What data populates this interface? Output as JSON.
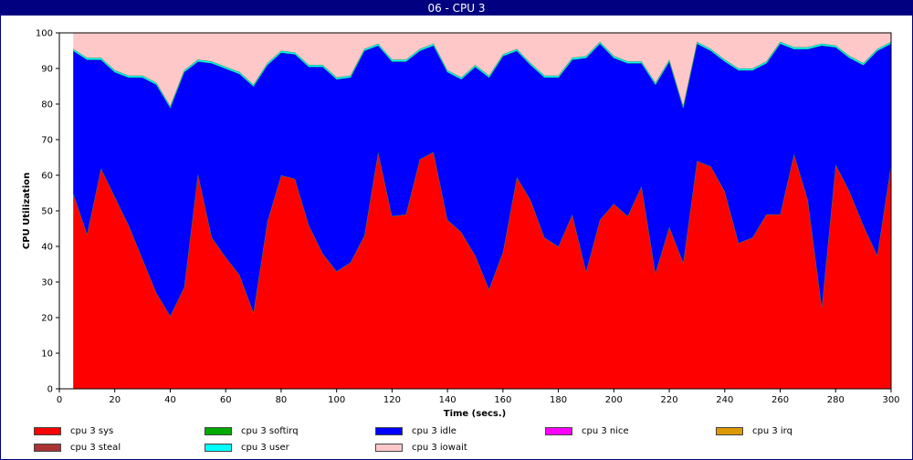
{
  "window": {
    "title": "06 - CPU 3"
  },
  "chart_data": {
    "type": "area",
    "stacked": true,
    "xlabel": "Time (secs.)",
    "ylabel": "CPU Utilization",
    "xlim": [
      0,
      300
    ],
    "ylim": [
      0,
      100
    ],
    "xticks": [
      0,
      20,
      40,
      60,
      80,
      100,
      120,
      140,
      160,
      180,
      200,
      220,
      240,
      260,
      280,
      300
    ],
    "yticks": [
      0,
      10,
      20,
      30,
      40,
      50,
      60,
      70,
      80,
      90,
      100
    ],
    "grid": false,
    "legend_position": "bottom",
    "x": [
      5,
      10,
      15,
      20,
      25,
      30,
      35,
      40,
      45,
      50,
      55,
      60,
      65,
      70,
      75,
      80,
      85,
      90,
      95,
      100,
      105,
      110,
      115,
      120,
      125,
      130,
      135,
      140,
      145,
      150,
      155,
      160,
      165,
      170,
      175,
      180,
      185,
      190,
      195,
      200,
      205,
      210,
      215,
      220,
      225,
      230,
      235,
      240,
      245,
      250,
      255,
      260,
      265,
      270,
      275,
      280,
      285,
      290,
      295,
      300
    ],
    "series": [
      {
        "name": "cpu 3 sys",
        "color": "#ff0000",
        "values": [
          55,
          43.5,
          62,
          54,
          46,
          36.5,
          27,
          20.5,
          28.5,
          60.5,
          42.5,
          37,
          32,
          21.5,
          47,
          60,
          59,
          46,
          38,
          33,
          35.5,
          43,
          66.5,
          48.5,
          49,
          64.5,
          66.5,
          47.5,
          44,
          37.5,
          28,
          38.5,
          59.5,
          53,
          42.5,
          40,
          49,
          33,
          47.5,
          52,
          48.5,
          57,
          32.5,
          45.5,
          35.5,
          64,
          62.5,
          55.5,
          41,
          42.5,
          49,
          49,
          66,
          53,
          23,
          63,
          55.5,
          46,
          37.5,
          63
        ]
      },
      {
        "name": "cpu 3 softirq",
        "color": "#00aa00",
        "values": [
          0,
          0,
          0,
          0,
          0,
          0,
          0,
          0,
          0,
          0,
          0,
          0,
          0,
          0,
          0,
          0,
          0,
          0,
          0,
          0,
          0,
          0,
          0,
          0,
          0,
          0,
          0,
          0,
          0,
          0,
          0,
          0,
          0,
          0,
          0,
          0,
          0,
          0,
          0,
          0,
          0,
          0,
          0,
          0,
          0,
          0,
          0,
          0,
          0,
          0,
          0,
          0,
          0,
          0,
          0,
          0,
          0,
          0,
          0,
          0
        ]
      },
      {
        "name": "cpu 3 idle",
        "color": "#0000ff",
        "values": [
          40,
          49,
          30.5,
          35,
          41.5,
          51,
          58.5,
          58.5,
          60.5,
          31.5,
          49,
          53,
          56.5,
          63.5,
          44,
          34.5,
          35,
          44.5,
          52.5,
          54,
          52,
          52,
          30,
          43.5,
          43,
          30.5,
          30,
          41.5,
          43,
          53,
          59.5,
          55,
          35.5,
          38,
          45,
          47.5,
          43.5,
          60,
          49.5,
          41,
          43,
          34.5,
          53,
          46.5,
          43.5,
          33,
          32.5,
          36.5,
          48.5,
          47,
          42.5,
          48,
          29.5,
          42.5,
          73.5,
          33,
          37.5,
          45,
          57.5,
          34
        ]
      },
      {
        "name": "cpu 3 nice",
        "color": "#ff00ff",
        "values": [
          0,
          0,
          0,
          0,
          0,
          0,
          0,
          0,
          0,
          0,
          0,
          0,
          0,
          0,
          0,
          0,
          0,
          0,
          0,
          0,
          0,
          0,
          0,
          0,
          0,
          0,
          0,
          0,
          0,
          0,
          0,
          0,
          0,
          0,
          0,
          0,
          0,
          0,
          0,
          0,
          0,
          0,
          0,
          0,
          0,
          0,
          0,
          0,
          0,
          0,
          0,
          0,
          0,
          0,
          0,
          0,
          0,
          0,
          0,
          0
        ]
      },
      {
        "name": "cpu 3 irq",
        "color": "#dd9900",
        "values": [
          0,
          0,
          0,
          0,
          0,
          0,
          0,
          0,
          0,
          0,
          0,
          0,
          0,
          0,
          0,
          0,
          0,
          0,
          0,
          0,
          0,
          0,
          0,
          0,
          0,
          0,
          0,
          0,
          0,
          0,
          0,
          0,
          0,
          0,
          0,
          0,
          0,
          0,
          0,
          0,
          0,
          0,
          0,
          0,
          0,
          0,
          0,
          0,
          0,
          0,
          0,
          0,
          0,
          0,
          0,
          0,
          0,
          0,
          0,
          0
        ]
      },
      {
        "name": "cpu 3 steal",
        "color": "#aa3333",
        "values": [
          0,
          0,
          0,
          0,
          0,
          0,
          0,
          0,
          0,
          0,
          0,
          0,
          0,
          0,
          0,
          0,
          0,
          0,
          0,
          0,
          0,
          0,
          0,
          0,
          0,
          0,
          0,
          0,
          0,
          0,
          0,
          0,
          0,
          0,
          0,
          0,
          0,
          0,
          0,
          0,
          0,
          0,
          0,
          0,
          0,
          0,
          0,
          0,
          0,
          0,
          0,
          0,
          0,
          0,
          0,
          0,
          0,
          0,
          0,
          0
        ]
      },
      {
        "name": "cpu 3 user",
        "color": "#00ffff",
        "values": [
          0.5,
          0.5,
          0.5,
          0.5,
          0.5,
          0.5,
          0.5,
          0.5,
          0.5,
          0.5,
          0.5,
          0.5,
          0.5,
          0.5,
          0.5,
          0.5,
          0.5,
          0.5,
          0.5,
          0.5,
          0.5,
          0.5,
          0.5,
          0.5,
          0.5,
          0.5,
          0.5,
          0.5,
          0.5,
          0.5,
          0.5,
          0.5,
          0.5,
          0.5,
          0.5,
          0.5,
          0.5,
          0.5,
          0.5,
          0.5,
          0.5,
          0.5,
          0.5,
          0.5,
          0.5,
          0.5,
          0.5,
          0.5,
          0.5,
          0.5,
          0.5,
          0.5,
          0.5,
          0.5,
          0.5,
          0.5,
          0.5,
          0.5,
          0.5,
          0.5
        ]
      },
      {
        "name": "cpu 3 iowait",
        "color": "#ffc8c8",
        "values": [
          4.5,
          7,
          7,
          10.5,
          12,
          12,
          14,
          20.5,
          10.5,
          7.5,
          8,
          9.5,
          11,
          14.5,
          8.5,
          5,
          5.5,
          9,
          9,
          12.5,
          12,
          4.5,
          3,
          7.5,
          7.5,
          4.5,
          3,
          10.5,
          12.5,
          9,
          12,
          6,
          4.5,
          8.5,
          12,
          12,
          7,
          6.5,
          2.5,
          6.5,
          8,
          8,
          14,
          7.5,
          20.5,
          2.5,
          4.5,
          7.5,
          10,
          10,
          8,
          2.5,
          4,
          4,
          3,
          3.5,
          6.5,
          8.5,
          4.5,
          2.5
        ]
      }
    ]
  }
}
